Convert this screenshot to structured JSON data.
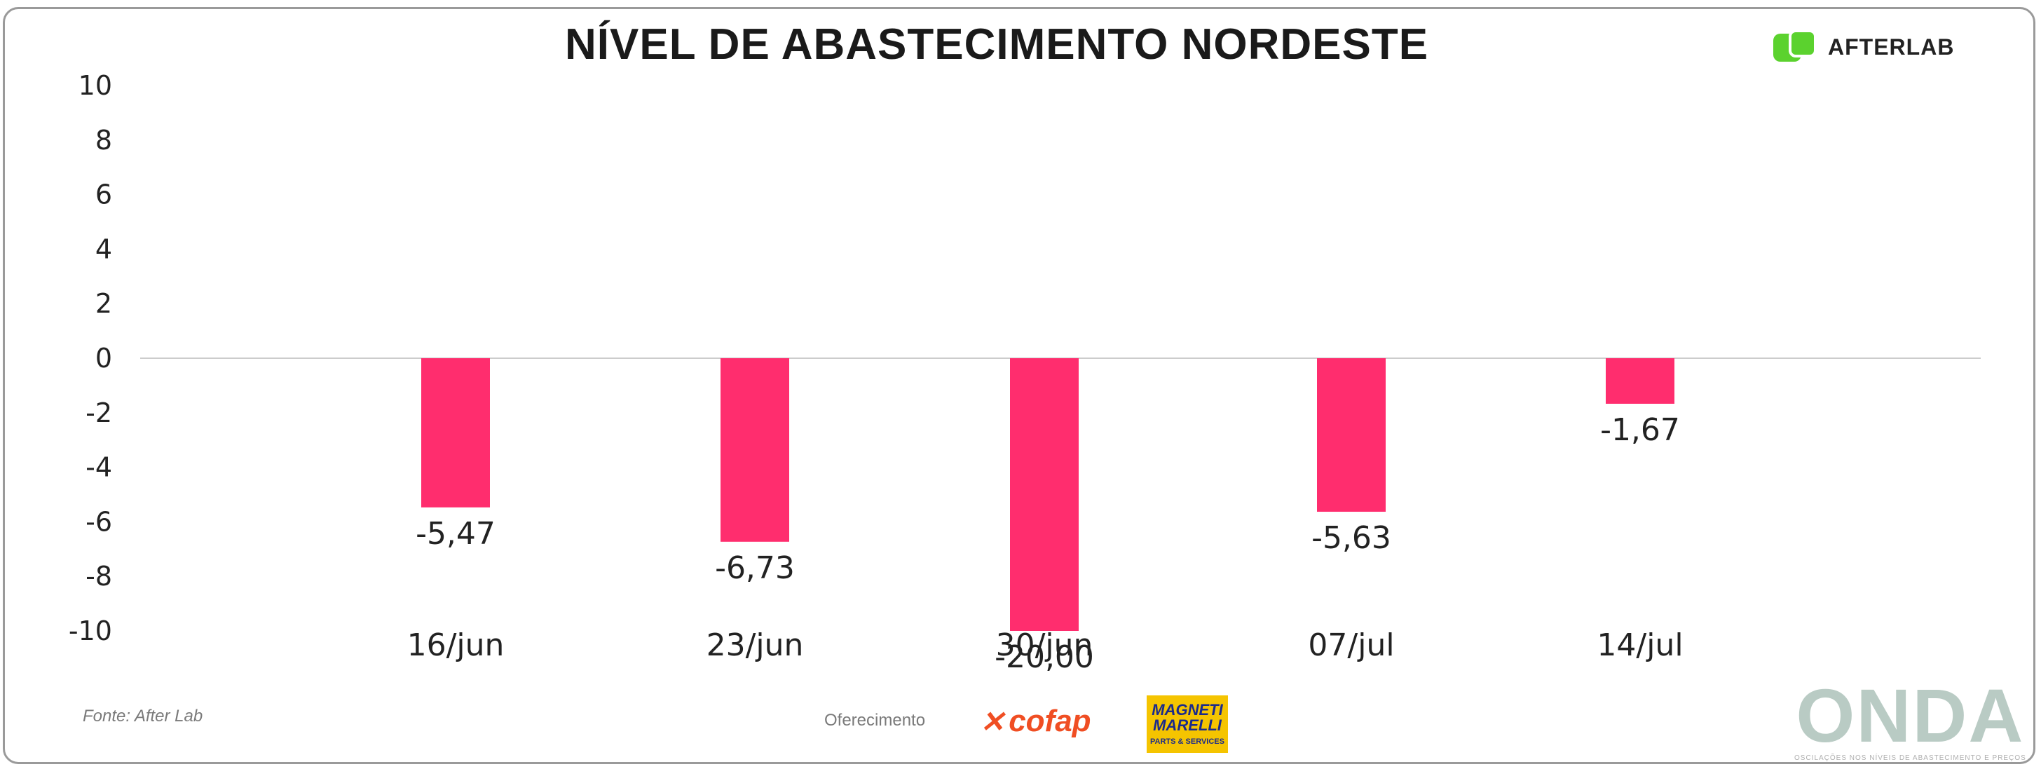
{
  "chart_data": {
    "type": "bar",
    "title": "NÍVEL DE ABASTECIMENTO NORDESTE",
    "categories": [
      "16/jun",
      "23/jun",
      "30/jun",
      "07/jul",
      "14/jul"
    ],
    "values": [
      -5.47,
      -6.73,
      -20.0,
      -5.63,
      -1.67
    ],
    "data_labels": [
      "-5,47",
      "-6,73",
      "-20,00",
      "-5,63",
      "-1,67"
    ],
    "yticks": [
      "10",
      "8",
      "6",
      "4",
      "2",
      "0",
      "-2",
      "-4",
      "-6",
      "-8",
      "-10"
    ],
    "xlabel": "",
    "ylabel": "",
    "ylim": [
      -10,
      10
    ],
    "grid": false,
    "bar_color": "#ff2d6e",
    "zero_line_color": "#cccccc"
  },
  "brand": {
    "name": "AFTERLAB",
    "color": "#5bd22e"
  },
  "footer": {
    "source": "Fonte: After Lab",
    "sponsor_label": "Oferecimento",
    "sponsor_1": "cofap",
    "sponsor_2_line1": "MAGNETI",
    "sponsor_2_line2": "MARELLI",
    "sponsor_2_sub": "PARTS & SERVICES",
    "logo_word": "ONDA",
    "logo_tagline": "OSCILAÇÕES NOS NÍVEIS DE ABASTECIMENTO E PREÇOS"
  }
}
